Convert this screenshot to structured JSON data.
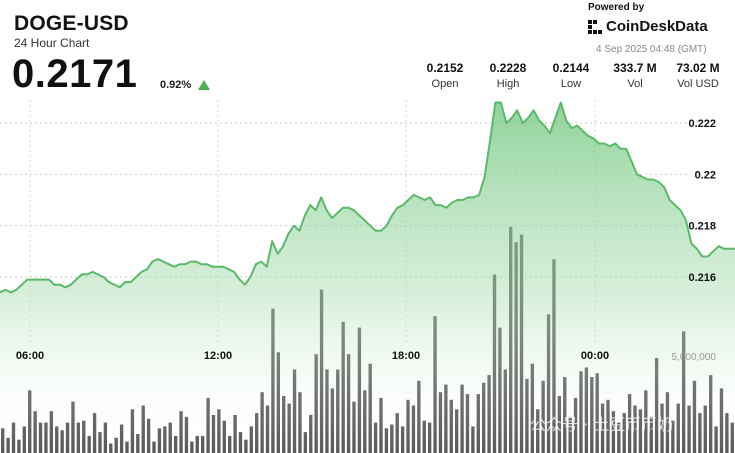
{
  "header": {
    "symbol": "DOGE-USD",
    "subtitle": "24 Hour Chart",
    "price": "0.2171",
    "change_pct": "0.92%",
    "change_direction": "up"
  },
  "branding": {
    "powered_by": "Powered by",
    "name": "CoinDeskData",
    "timestamp": "4 Sep 2025 04:48 (GMT)"
  },
  "stats": [
    {
      "value": "0.2152",
      "label": "Open"
    },
    {
      "value": "0.2228",
      "label": "High"
    },
    {
      "value": "0.2144",
      "label": "Low"
    },
    {
      "value": "333.7 M",
      "label": "Vol"
    },
    {
      "value": "73.02 M",
      "label": "Vol USD"
    }
  ],
  "watermark": "公众号 · 土豆币币奶",
  "colors": {
    "line": "#5cb86a",
    "area_top": "#6cc47a",
    "volume_bar": "#5a5a5a",
    "up_triangle": "#4caf50"
  },
  "chart_data": [
    {
      "type": "area",
      "x_tick_labels": [
        "06:00",
        "12:00",
        "18:00",
        "00:00"
      ],
      "y_tick_labels": [
        "0.216",
        "0.218",
        "0.22",
        "0.222"
      ],
      "ylim": [
        0.2145,
        0.2232
      ],
      "y_axis_side": "right",
      "grid": "horizontal dotted",
      "values": [
        0.2154,
        0.2155,
        0.2154,
        0.2155,
        0.2157,
        0.2159,
        0.2159,
        0.2159,
        0.2159,
        0.2159,
        0.2157,
        0.2157,
        0.2156,
        0.2157,
        0.2159,
        0.2161,
        0.2161,
        0.2162,
        0.2161,
        0.216,
        0.2158,
        0.2157,
        0.2156,
        0.2158,
        0.2158,
        0.216,
        0.2162,
        0.2163,
        0.2166,
        0.2167,
        0.2166,
        0.2165,
        0.2164,
        0.2165,
        0.2165,
        0.2166,
        0.2166,
        0.2165,
        0.2165,
        0.2164,
        0.2164,
        0.2164,
        0.2163,
        0.2162,
        0.2159,
        0.2157,
        0.216,
        0.2165,
        0.2166,
        0.2164,
        0.2174,
        0.2169,
        0.2172,
        0.2177,
        0.218,
        0.2178,
        0.2184,
        0.2188,
        0.2186,
        0.2191,
        0.2186,
        0.2183,
        0.2185,
        0.2187,
        0.2187,
        0.2186,
        0.2184,
        0.2182,
        0.218,
        0.2178,
        0.2178,
        0.218,
        0.2184,
        0.2187,
        0.2188,
        0.219,
        0.2192,
        0.2191,
        0.219,
        0.2191,
        0.2188,
        0.2188,
        0.2187,
        0.2189,
        0.219,
        0.219,
        0.2191,
        0.2191,
        0.2192,
        0.2199,
        0.2213,
        0.2228,
        0.2228,
        0.222,
        0.2222,
        0.2225,
        0.222,
        0.2222,
        0.2225,
        0.2221,
        0.2219,
        0.2216,
        0.2222,
        0.2228,
        0.2221,
        0.2218,
        0.2219,
        0.2217,
        0.2215,
        0.2214,
        0.2212,
        0.2212,
        0.2211,
        0.2212,
        0.221,
        0.221,
        0.2205,
        0.22,
        0.2199,
        0.2198,
        0.2198,
        0.2197,
        0.2195,
        0.219,
        0.2188,
        0.2186,
        0.2182,
        0.2173,
        0.2171,
        0.2168,
        0.2168,
        0.217,
        0.2172,
        0.2171,
        0.2171,
        0.2171
      ]
    },
    {
      "type": "bar",
      "series_label": "volume",
      "y_tick_labels": [
        "5,000,000"
      ],
      "values": [
        1.3,
        0.8,
        1.6,
        0.7,
        1.4,
        3.3,
        2.2,
        1.6,
        1.6,
        2.2,
        1.4,
        1.2,
        1.6,
        2.7,
        1.6,
        1.7,
        0.9,
        2.1,
        1.1,
        1.6,
        0.5,
        0.8,
        1.5,
        0.6,
        2.3,
        1.0,
        2.5,
        1.8,
        0.6,
        1.3,
        1.4,
        1.6,
        0.9,
        2.2,
        1.9,
        0.6,
        0.9,
        0.9,
        2.9,
        2.0,
        2.3,
        1.7,
        0.9,
        2.0,
        1.1,
        0.7,
        1.4,
        2.1,
        3.2,
        2.5,
        7.6,
        5.3,
        3.0,
        2.6,
        4.4,
        3.2,
        1.1,
        2.0,
        5.2,
        8.6,
        4.4,
        3.4,
        4.4,
        6.9,
        5.2,
        2.7,
        6.6,
        3.3,
        4.7,
        1.6,
        2.9,
        1.3,
        1.5,
        2.1,
        1.4,
        2.8,
        2.5,
        3.8,
        1.7,
        1.6,
        7.2,
        3.2,
        3.6,
        2.8,
        2.3,
        3.6,
        3.1,
        1.4,
        3.1,
        3.7,
        4.1,
        9.4,
        6.6,
        4.4,
        11.9,
        11.1,
        11.5,
        3.9,
        4.7,
        2.3,
        3.8,
        7.3,
        10.2,
        3.0,
        4.0,
        1.9,
        2.9,
        4.3,
        4.5,
        4.0,
        4.2,
        2.6,
        2.8,
        2.2,
        1.6,
        2.1,
        3.1,
        2.5,
        2.3,
        3.3,
        1.9,
        5.0,
        2.6,
        3.2,
        1.7,
        2.6,
        6.4,
        2.5,
        3.8,
        2.1,
        2.5,
        4.1,
        1.4,
        3.4,
        2.1,
        1.6
      ]
    }
  ]
}
